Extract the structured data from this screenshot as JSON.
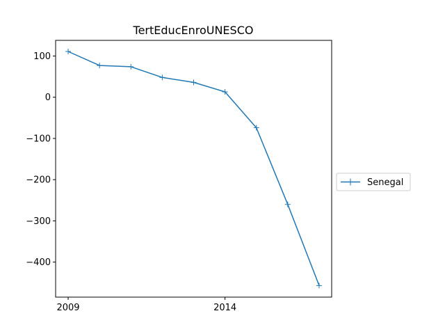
{
  "chart_data": {
    "type": "line",
    "title": "TertEducEnroUNESCO",
    "xlabel": "",
    "ylabel": "",
    "x": [
      2009,
      2010,
      2011,
      2012,
      2013,
      2014,
      2015,
      2016,
      2017
    ],
    "series": [
      {
        "name": "Senegal",
        "color": "#1f77b4",
        "marker": "+",
        "values": [
          111,
          77,
          74,
          48,
          36,
          13,
          -74,
          -260,
          -457
        ]
      }
    ],
    "xticks": [
      2009,
      2014
    ],
    "xtick_labels": [
      "2009",
      "2014"
    ],
    "yticks": [
      100,
      0,
      -100,
      -200,
      -300,
      -400
    ],
    "ytick_labels": [
      "100",
      "0",
      "−100",
      "−200",
      "−300",
      "−400"
    ],
    "xlim": [
      2008.6,
      2017.4
    ],
    "ylim": [
      -485,
      138
    ],
    "grid": false,
    "legend": "right, outside plot"
  }
}
